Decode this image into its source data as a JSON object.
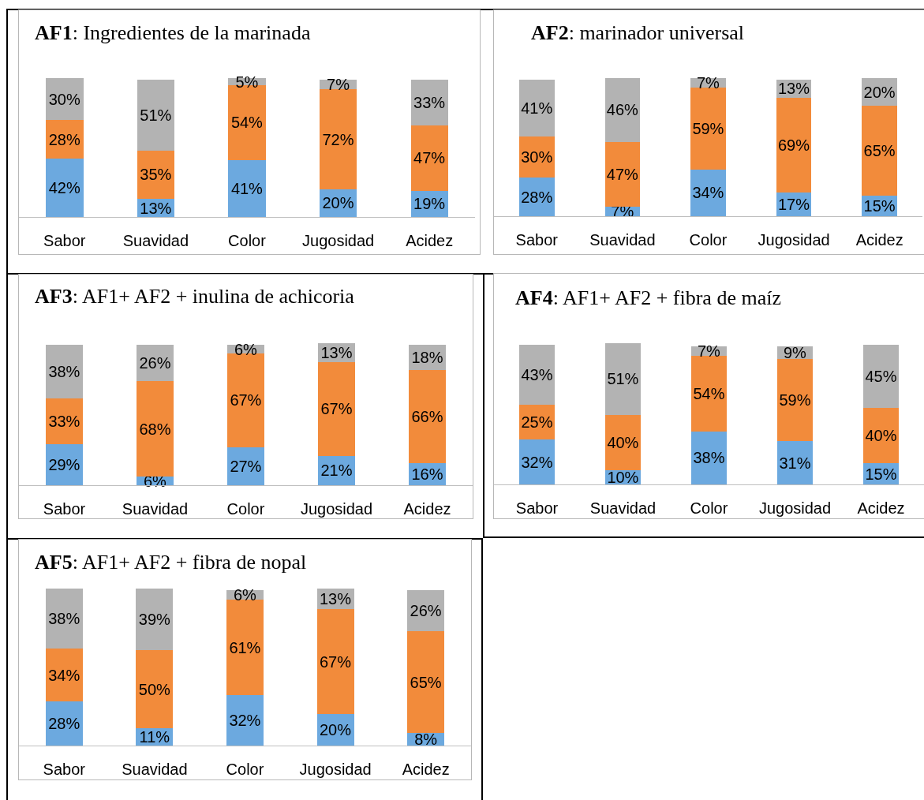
{
  "chart_data": [
    {
      "type": "bar",
      "title": "AF1: Ingredientes de la marinada",
      "categories": [
        "Sabor",
        "Suavidad",
        "Color",
        "Jugosidad",
        "Acidez"
      ],
      "stacked": true,
      "series": [
        {
          "color": "#6ca9df",
          "values": [
            42,
            13,
            41,
            20,
            19
          ],
          "value_labels": [
            "42%",
            "13%",
            "41%",
            "20%",
            "19%"
          ]
        },
        {
          "color": "#f28b3b",
          "values": [
            28,
            35,
            54,
            72,
            47
          ],
          "value_labels": [
            "28%",
            "35%",
            "54%",
            "72%",
            "47%"
          ]
        },
        {
          "color": "#b3b3b3",
          "values": [
            30,
            51,
            5,
            7,
            33
          ],
          "value_labels": [
            "30%",
            "51%",
            "5%",
            "7%",
            "33%"
          ]
        }
      ]
    },
    {
      "type": "bar",
      "title": "AF2: marinador universal",
      "categories": [
        "Sabor",
        "Suavidad",
        "Color",
        "Jugosidad",
        "Acidez"
      ],
      "stacked": true,
      "series": [
        {
          "color": "#6ca9df",
          "values": [
            28,
            7,
            34,
            17,
            15
          ],
          "value_labels": [
            "28%",
            "7%",
            "34%",
            "17%",
            "15%"
          ]
        },
        {
          "color": "#f28b3b",
          "values": [
            30,
            47,
            59,
            69,
            65
          ],
          "value_labels": [
            "30%",
            "47%",
            "59%",
            "69%",
            "65%"
          ]
        },
        {
          "color": "#b3b3b3",
          "values": [
            41,
            46,
            7,
            13,
            20
          ],
          "value_labels": [
            "41%",
            "46%",
            "7%",
            "13%",
            "20%"
          ]
        }
      ]
    },
    {
      "type": "bar",
      "title": "AF3: AF1+ AF2 + inulina de achicoria",
      "categories": [
        "Sabor",
        "Suavidad",
        "Color",
        "Jugosidad",
        "Acidez"
      ],
      "stacked": true,
      "series": [
        {
          "color": "#6ca9df",
          "values": [
            29,
            6,
            27,
            21,
            16
          ],
          "value_labels": [
            "29%",
            "6%",
            "27%",
            "21%",
            "16%"
          ]
        },
        {
          "color": "#f28b3b",
          "values": [
            33,
            68,
            67,
            67,
            66
          ],
          "value_labels": [
            "33%",
            "68%",
            "67%",
            "67%",
            "66%"
          ]
        },
        {
          "color": "#b3b3b3",
          "values": [
            38,
            26,
            6,
            13,
            18
          ],
          "value_labels": [
            "38%",
            "26%",
            "6%",
            "13%",
            "18%"
          ]
        }
      ]
    },
    {
      "type": "bar",
      "title": "AF4: AF1+ AF2 + fibra de maíz",
      "categories": [
        "Sabor",
        "Suavidad",
        "Color",
        "Jugosidad",
        "Acidez"
      ],
      "stacked": true,
      "series": [
        {
          "color": "#6ca9df",
          "values": [
            32,
            10,
            38,
            31,
            15
          ],
          "value_labels": [
            "32%",
            "10%",
            "38%",
            "31%",
            "15%"
          ]
        },
        {
          "color": "#f28b3b",
          "values": [
            25,
            40,
            54,
            59,
            40
          ],
          "value_labels": [
            "25%",
            "40%",
            "54%",
            "59%",
            "40%"
          ]
        },
        {
          "color": "#b3b3b3",
          "values": [
            43,
            51,
            7,
            9,
            45
          ],
          "value_labels": [
            "43%",
            "51%",
            "7%",
            "9%",
            "45%"
          ]
        }
      ]
    },
    {
      "type": "bar",
      "title": "AF5: AF1+ AF2 + fibra de nopal",
      "categories": [
        "Sabor",
        "Suavidad",
        "Color",
        "Jugosidad",
        "Acidez"
      ],
      "stacked": true,
      "series": [
        {
          "color": "#6ca9df",
          "values": [
            28,
            11,
            32,
            20,
            8
          ],
          "value_labels": [
            "28%",
            "11%",
            "32%",
            "20%",
            "8%"
          ]
        },
        {
          "color": "#f28b3b",
          "values": [
            34,
            50,
            61,
            67,
            65
          ],
          "value_labels": [
            "34%",
            "50%",
            "61%",
            "67%",
            "65%"
          ]
        },
        {
          "color": "#b3b3b3",
          "values": [
            38,
            39,
            6,
            13,
            26
          ],
          "value_labels": [
            "38%",
            "39%",
            "6%",
            "13%",
            "26%"
          ]
        }
      ]
    }
  ]
}
